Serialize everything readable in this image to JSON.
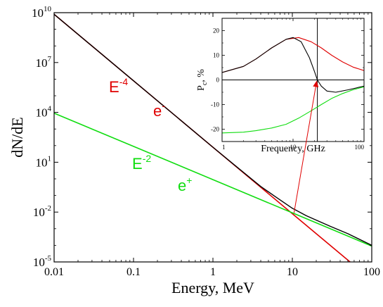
{
  "chart_data": [
    {
      "id": "main",
      "type": "line",
      "title": "",
      "xlabel": "Energy, MeV",
      "ylabel": "dN/dE",
      "xscale": "log",
      "yscale": "log",
      "xlim": [
        0.01,
        100
      ],
      "ylim": [
        1e-05,
        10000000000.0
      ],
      "x_ticks": [
        {
          "value": 0.01,
          "label": "0.01"
        },
        {
          "value": 0.1,
          "label": "0.1"
        },
        {
          "value": 1,
          "label": "1"
        },
        {
          "value": 10,
          "label": "10"
        },
        {
          "value": 100,
          "label": "100"
        }
      ],
      "y_ticks": [
        {
          "value": 1e-05,
          "base": "10",
          "exp": "-5"
        },
        {
          "value": 0.01,
          "base": "10",
          "exp": "-2"
        },
        {
          "value": 10.0,
          "base": "10",
          "exp": "1"
        },
        {
          "value": 10000.0,
          "base": "10",
          "exp": "4"
        },
        {
          "value": 10000000.0,
          "base": "10",
          "exp": "7"
        },
        {
          "value": 10000000000.0,
          "base": "10",
          "exp": "10"
        }
      ],
      "series": [
        {
          "color": "#e00000",
          "x": [
            0.01,
            0.1,
            1,
            10,
            52,
            100
          ],
          "y": [
            8000000000.0,
            800000.0,
            80,
            0.008,
            1.1e-05,
            1e-06
          ]
        },
        {
          "color": "#10dd10",
          "x": [
            0.01,
            0.1,
            1,
            10,
            100
          ],
          "y": [
            9000,
            90,
            0.9,
            0.009,
            9e-05
          ]
        },
        {
          "color": "#000000",
          "x": [
            0.01,
            0.1,
            1,
            2,
            4,
            6,
            10,
            15,
            20,
            30,
            50,
            100
          ],
          "y": [
            8000000000.0,
            800000.0,
            80,
            5.2,
            0.35,
            0.09,
            0.017,
            0.006,
            0.0033,
            0.0014,
            0.0005,
            0.0001
          ]
        }
      ],
      "annotations": [
        {
          "base": "E",
          "exp": "-4",
          "color": "#e00000"
        },
        {
          "base": "e",
          "exp": "-",
          "color": "#e00000"
        },
        {
          "base": "E",
          "exp": "-2",
          "color": "#10dd10"
        },
        {
          "base": "e",
          "exp": "+",
          "color": "#10dd10"
        }
      ],
      "arrows_to_inset": [
        {
          "from_x": 10.5,
          "from_y": 0.009,
          "to_x": 22,
          "to_y": 0
        }
      ]
    },
    {
      "id": "inset",
      "type": "line",
      "title": "",
      "xlabel": "Frequency, GHz",
      "ylabel": {
        "base": "P",
        "sub": "c",
        "unit": ", %"
      },
      "xscale": "log",
      "yscale": "linear",
      "xlim": [
        1,
        100
      ],
      "ylim": [
        -25,
        25
      ],
      "x_ticks": [
        {
          "value": 1,
          "label": "1"
        },
        {
          "value": 10,
          "label": "10"
        },
        {
          "value": 100,
          "label": "100"
        }
      ],
      "y_ticks": [
        {
          "value": -20,
          "label": "-20"
        },
        {
          "value": -10,
          "label": "-10"
        },
        {
          "value": 0,
          "label": "0"
        },
        {
          "value": 10,
          "label": "10"
        },
        {
          "value": 20,
          "label": "20"
        }
      ],
      "reference_lines": {
        "hline_y": 0,
        "vline_x": 22
      },
      "series": [
        {
          "color": "#e00000",
          "x": [
            1,
            2,
            3,
            5,
            8,
            12,
            18,
            25,
            35,
            50,
            70,
            100
          ],
          "y": [
            3,
            5.5,
            8.5,
            13,
            16.5,
            17.2,
            15.5,
            13,
            10,
            7.3,
            5.2,
            3.8
          ]
        },
        {
          "color": "#000000",
          "x": [
            1,
            2,
            3,
            5,
            8,
            10,
            13,
            17,
            20,
            22,
            25,
            30,
            40,
            60,
            100
          ],
          "y": [
            3,
            5.5,
            8.5,
            13,
            16.5,
            17.2,
            15.5,
            9,
            3.5,
            0,
            -2.5,
            -4.5,
            -5,
            -4,
            -2.5
          ]
        },
        {
          "color": "#10dd10",
          "x": [
            1,
            2,
            3,
            5,
            8,
            12,
            18,
            25,
            35,
            50,
            70,
            100
          ],
          "y": [
            -21.5,
            -21.2,
            -20.6,
            -19.5,
            -18,
            -15.5,
            -12.5,
            -10,
            -7.5,
            -5.5,
            -4,
            -2.8
          ]
        }
      ]
    }
  ]
}
